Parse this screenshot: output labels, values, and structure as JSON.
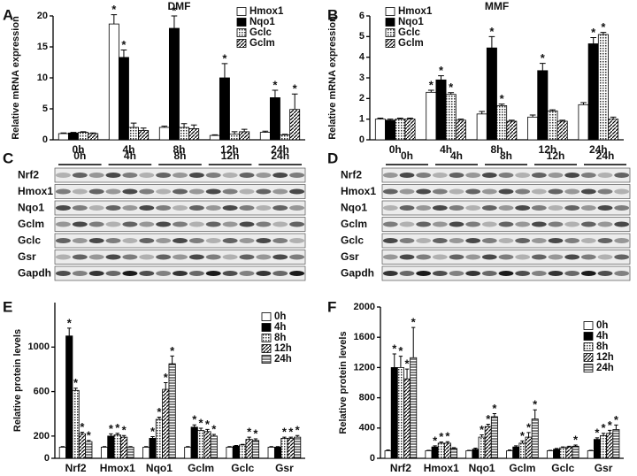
{
  "chart_data": [
    {
      "type": "bar",
      "panel": "A",
      "title": "DMF",
      "ylabel": "Relative mRNA expression",
      "legend": "top-right",
      "categories": [
        "0h",
        "4h",
        "8h",
        "12h",
        "24h"
      ],
      "ylim": [
        0,
        20
      ],
      "yticks": [
        0,
        5,
        10,
        15,
        20
      ],
      "series": [
        {
          "name": "Hmox1",
          "fill": "white",
          "values": [
            1,
            18.7,
            2,
            0.7,
            1.2
          ],
          "errors": [
            0.1,
            1.5,
            0.2,
            0.1,
            0.2
          ],
          "sig": [
            null,
            "*",
            null,
            null,
            null
          ]
        },
        {
          "name": "Nqo1",
          "fill": "black",
          "values": [
            1.1,
            13.3,
            18,
            10,
            6.8
          ],
          "errors": [
            0.1,
            1.2,
            2,
            2.3,
            1.2
          ],
          "sig": [
            null,
            "*",
            "*",
            "*",
            "*"
          ]
        },
        {
          "name": "Gclc",
          "fill": "dots",
          "values": [
            1.2,
            2,
            2,
            0.9,
            0.8
          ],
          "errors": [
            0.1,
            0.7,
            0.6,
            0.4,
            0.1
          ],
          "sig": [
            null,
            null,
            null,
            null,
            null
          ]
        },
        {
          "name": "Gclm",
          "fill": "diagonal",
          "values": [
            1,
            1.5,
            1.8,
            1.3,
            4.9
          ],
          "errors": [
            0.1,
            0.4,
            0.6,
            0.4,
            2.5
          ],
          "sig": [
            null,
            null,
            null,
            null,
            "*"
          ]
        }
      ]
    },
    {
      "type": "bar",
      "panel": "B",
      "title": "MMF",
      "ylabel": "Relative mRNA expression",
      "legend": "top-left",
      "categories": [
        "0h",
        "4h",
        "8h",
        "12h",
        "24h"
      ],
      "ylim": [
        0,
        6
      ],
      "yticks": [
        0,
        1,
        2,
        3,
        4,
        5,
        6
      ],
      "series": [
        {
          "name": "Hmox1",
          "fill": "white",
          "values": [
            1,
            2.3,
            1.25,
            1.1,
            1.7
          ],
          "errors": [
            0.05,
            0.1,
            0.12,
            0.1,
            0.1
          ],
          "sig": [
            null,
            "*",
            null,
            null,
            null
          ]
        },
        {
          "name": "Nqo1",
          "fill": "black",
          "values": [
            0.95,
            2.9,
            4.45,
            3.35,
            4.65
          ],
          "errors": [
            0.05,
            0.2,
            0.55,
            0.35,
            0.3
          ],
          "sig": [
            null,
            "*",
            "*",
            "*",
            "*"
          ]
        },
        {
          "name": "Gclc",
          "fill": "dots",
          "values": [
            1,
            2.2,
            1.65,
            1.4,
            5.1
          ],
          "errors": [
            0.05,
            0.08,
            0.08,
            0.05,
            0.1
          ],
          "sig": [
            null,
            "*",
            "*",
            null,
            "*"
          ]
        },
        {
          "name": "Gclm",
          "fill": "diagonal",
          "values": [
            1,
            0.95,
            0.9,
            0.9,
            1.0
          ],
          "errors": [
            0.05,
            0.05,
            0.05,
            0.05,
            0.1
          ],
          "sig": [
            null,
            null,
            null,
            null,
            null
          ]
        }
      ]
    },
    {
      "type": "bar",
      "panel": "E",
      "ylabel": "Relative protein levels",
      "legend": "top-right",
      "categories": [
        "Nrf2",
        "Hmox1",
        "Nqo1",
        "Gclm",
        "Gclc",
        "Gsr"
      ],
      "ylim": [
        0,
        1400
      ],
      "yticks": [
        0,
        200,
        600,
        1000
      ],
      "series": [
        {
          "name": "0h",
          "fill": "white",
          "values": [
            100,
            100,
            100,
            100,
            100,
            100
          ],
          "errors": [
            5,
            5,
            5,
            5,
            5,
            5
          ],
          "sig": [
            null,
            null,
            null,
            null,
            null,
            null
          ]
        },
        {
          "name": "4h",
          "fill": "black",
          "values": [
            1100,
            200,
            180,
            280,
            110,
            100
          ],
          "errors": [
            70,
            20,
            15,
            20,
            5,
            5
          ],
          "sig": [
            "*",
            "*",
            "*",
            "*",
            null,
            null
          ]
        },
        {
          "name": "8h",
          "fill": "dots",
          "values": [
            610,
            210,
            350,
            250,
            120,
            180
          ],
          "errors": [
            20,
            15,
            20,
            20,
            5,
            10
          ],
          "sig": [
            "*",
            "*",
            "*",
            "*",
            null,
            "*"
          ]
        },
        {
          "name": "12h",
          "fill": "diagonal",
          "values": [
            220,
            190,
            620,
            240,
            170,
            180
          ],
          "errors": [
            15,
            15,
            60,
            20,
            20,
            10
          ],
          "sig": [
            "*",
            "*",
            "*",
            "*",
            "*",
            "*"
          ]
        },
        {
          "name": "24h",
          "fill": "stripes",
          "values": [
            150,
            100,
            850,
            200,
            160,
            190
          ],
          "errors": [
            10,
            5,
            70,
            15,
            15,
            15
          ],
          "sig": [
            "*",
            null,
            "*",
            "*",
            "*",
            "*"
          ]
        }
      ]
    },
    {
      "type": "bar",
      "panel": "F",
      "ylabel": "Relative protein levels",
      "legend": "top-right",
      "categories": [
        "Nrf2",
        "Hmox1",
        "Nqo1",
        "Gclm",
        "Gclc",
        "Gsr"
      ],
      "ylim": [
        0,
        2000
      ],
      "yticks": [
        0,
        400,
        800,
        1200,
        1600,
        2000
      ],
      "series": [
        {
          "name": "0h",
          "fill": "white",
          "values": [
            100,
            100,
            100,
            100,
            100,
            100
          ],
          "errors": [
            10,
            5,
            5,
            10,
            5,
            5
          ],
          "sig": [
            null,
            null,
            null,
            null,
            null,
            null
          ]
        },
        {
          "name": "4h",
          "fill": "black",
          "values": [
            1200,
            150,
            120,
            150,
            120,
            250
          ],
          "errors": [
            180,
            15,
            15,
            15,
            10,
            20
          ],
          "sig": [
            "*",
            "*",
            null,
            null,
            null,
            "*"
          ]
        },
        {
          "name": "8h",
          "fill": "dots",
          "values": [
            1200,
            200,
            280,
            200,
            140,
            300
          ],
          "errors": [
            150,
            15,
            30,
            30,
            10,
            30
          ],
          "sig": [
            "*",
            "*",
            "*",
            "*",
            null,
            "*"
          ]
        },
        {
          "name": "12h",
          "fill": "diagonal",
          "values": [
            1050,
            200,
            420,
            280,
            150,
            330
          ],
          "errors": [
            130,
            20,
            30,
            60,
            10,
            40
          ],
          "sig": [
            "*",
            "*",
            "*",
            "*",
            null,
            "*"
          ]
        },
        {
          "name": "24h",
          "fill": "stripes",
          "values": [
            1330,
            130,
            550,
            520,
            160,
            380
          ],
          "errors": [
            400,
            10,
            40,
            120,
            15,
            60
          ],
          "sig": [
            "*",
            null,
            "*",
            "*",
            "*",
            "*"
          ]
        }
      ]
    }
  ],
  "blots": [
    {
      "panel": "C",
      "timepoints": [
        "0h",
        "4h",
        "8h",
        "12h",
        "24h"
      ],
      "rows": [
        "Nrf2",
        "Hmox1",
        "Nqo1",
        "Gclm",
        "Gclc",
        "Gsr",
        "Gapdh"
      ]
    },
    {
      "panel": "D",
      "timepoints": [
        "0h",
        "4h",
        "8h",
        "12h",
        "24h"
      ],
      "rows": [
        "Nrf2",
        "Hmox1",
        "Nqo1",
        "Gclm",
        "Gclc",
        "Gsr",
        "Gapdh"
      ]
    }
  ]
}
